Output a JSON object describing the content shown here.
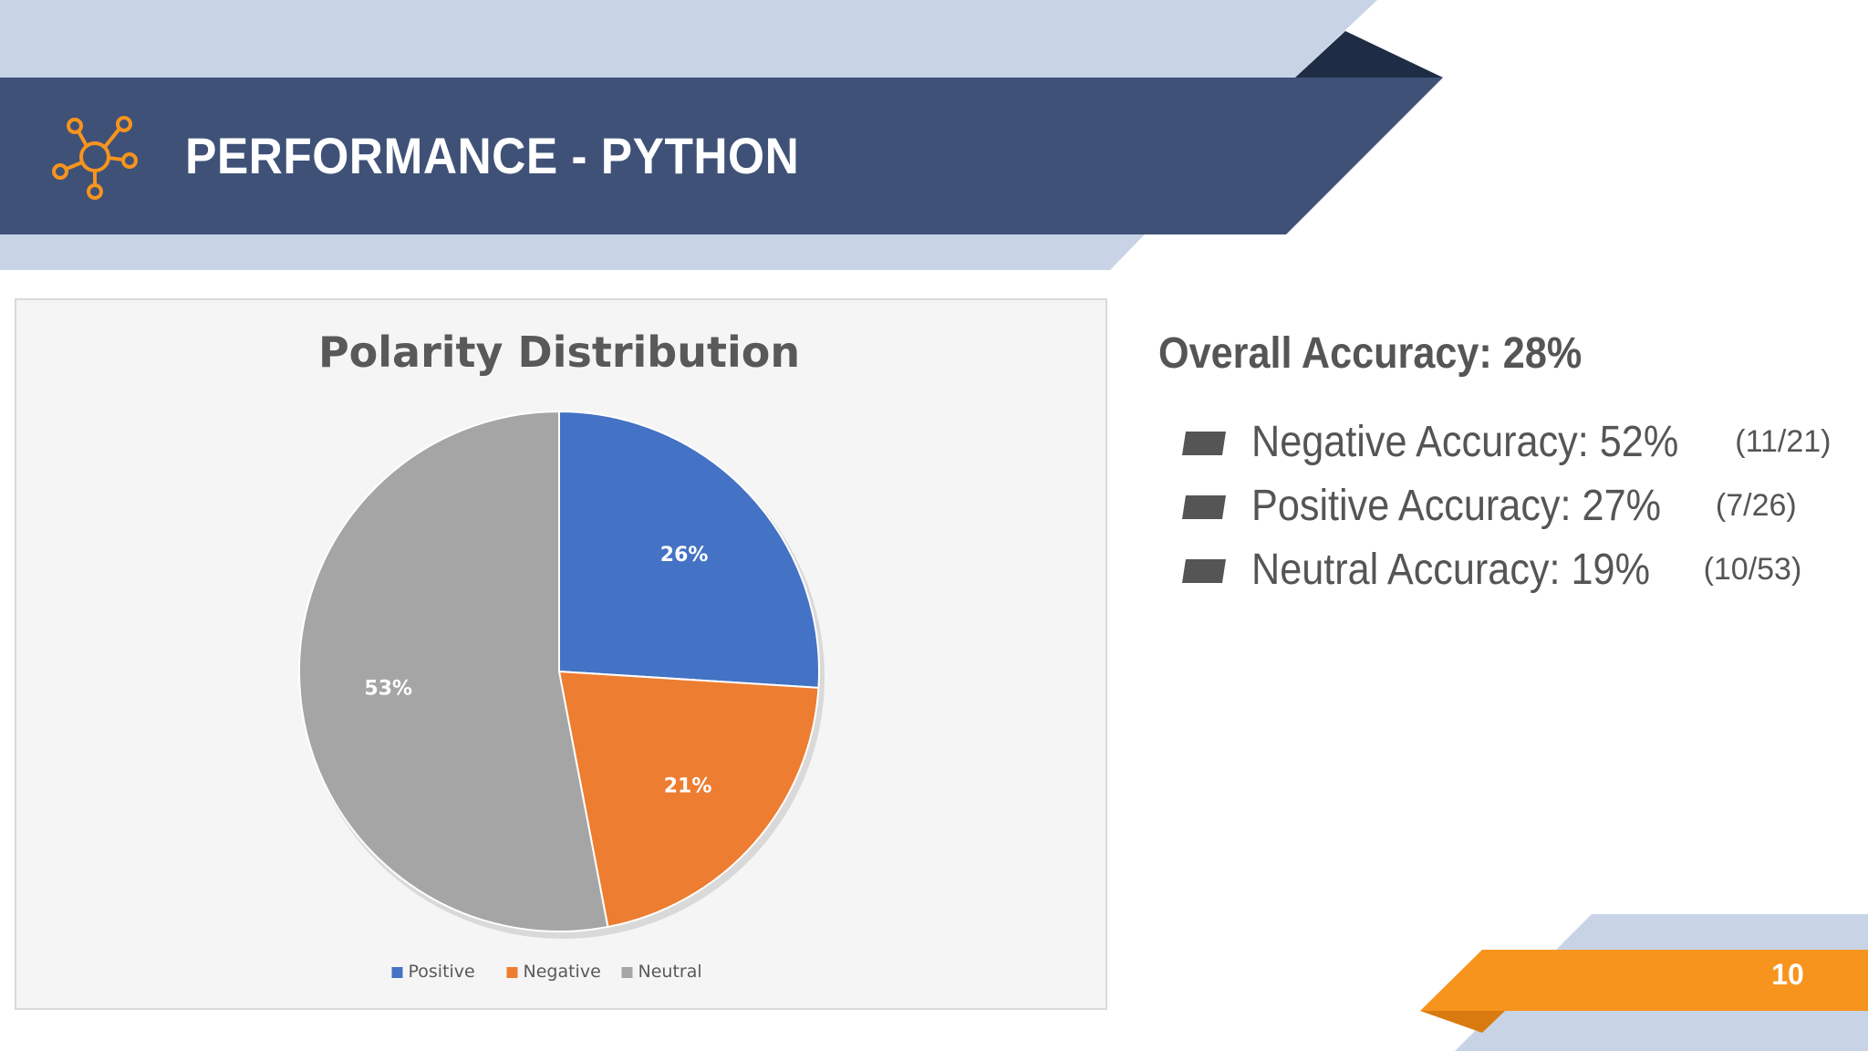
{
  "slide": {
    "title": "PERFORMANCE - PYTHON",
    "page_number": "10",
    "logo_icon": "network-nodes-icon",
    "colors": {
      "header_band": "#3f5177",
      "light_band": "#c8d4e6",
      "dark_accent": "#1f2c45",
      "orange_accent": "#f7941d",
      "orange_shadow": "#d97a10",
      "text_gray": "#555555"
    }
  },
  "chart_data": {
    "type": "pie",
    "title": "Polarity Distribution",
    "categories": [
      "Positive",
      "Negative",
      "Neutral"
    ],
    "values": [
      26,
      21,
      53
    ],
    "data_labels": [
      "26%",
      "21%",
      "53%"
    ],
    "colors": [
      "#4472c4",
      "#ed7d31",
      "#a5a5a5"
    ],
    "legend": "bottom",
    "start_angle_deg": 0,
    "direction": "clockwise"
  },
  "accuracy": {
    "overall": "Overall Accuracy: 28%",
    "items": [
      {
        "label": "Negative Accuracy: 52%",
        "fraction": "(11/21)"
      },
      {
        "label": "Positive Accuracy: 27%",
        "fraction": "(7/26)"
      },
      {
        "label": "Neutral Accuracy: 19%",
        "fraction": "(10/53)"
      }
    ]
  }
}
